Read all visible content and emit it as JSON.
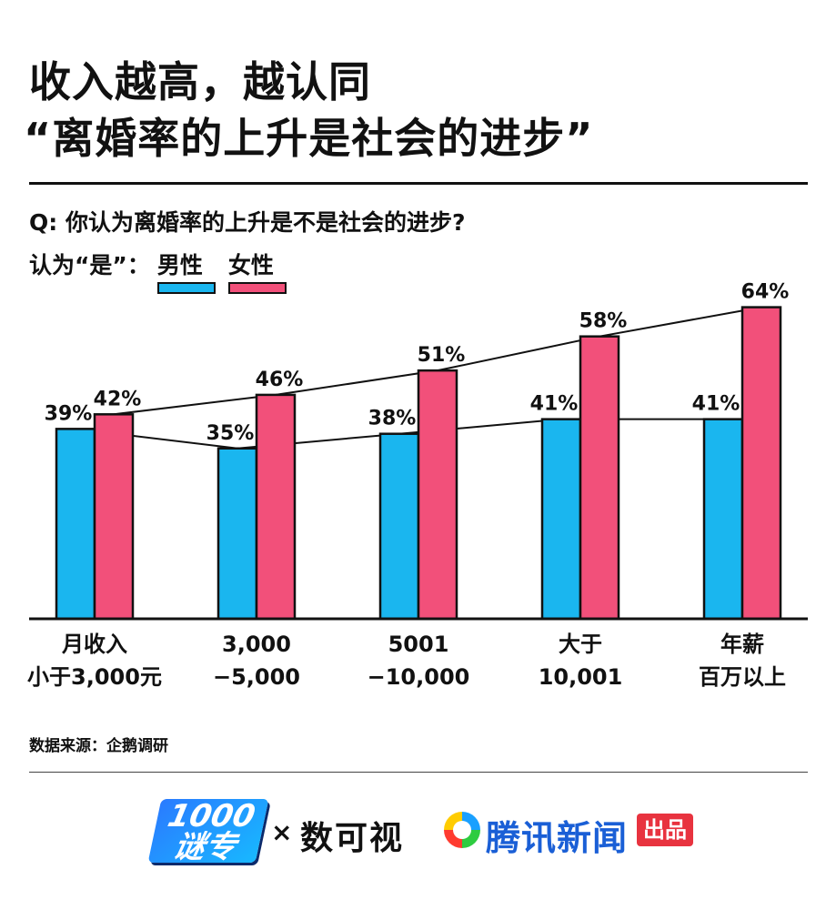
{
  "title": {
    "line1": "收入越高，越认同",
    "line2": "“离婚率的上升是社会的进步”"
  },
  "question": "Q: 你认为离婚率的上升是不是社会的进步?",
  "legend": {
    "label": "认为“是”：",
    "male": "男性",
    "female": "女性"
  },
  "colors": {
    "male": "#1ab6ef",
    "female": "#f2507a",
    "outline": "#111111"
  },
  "chart_data": {
    "type": "bar",
    "categories": [
      "月收入\n小于3,000元",
      "3,000\n−5,000",
      "5001\n−10,000",
      "大于\n10,001",
      "年薪\n百万以上"
    ],
    "series": [
      {
        "name": "男性",
        "values": [
          39,
          35,
          38,
          41,
          41
        ]
      },
      {
        "name": "女性",
        "values": [
          42,
          46,
          51,
          58,
          64
        ]
      }
    ],
    "value_labels": {
      "male": [
        "39%",
        "35%",
        "38%",
        "41%",
        "41%"
      ],
      "female": [
        "42%",
        "46%",
        "51%",
        "58%",
        "64%"
      ]
    },
    "ylim": [
      0,
      64
    ],
    "grid": false,
    "legend_position": "top-left"
  },
  "source": "数据来源：企鹅调研",
  "logos": {
    "logo_a": "1000谜专",
    "times": "×",
    "logo_b": "数可视",
    "logo_c_icon": "tencent-news-icon",
    "logo_c": "腾讯新闻",
    "logo_c_badge": "出品"
  }
}
